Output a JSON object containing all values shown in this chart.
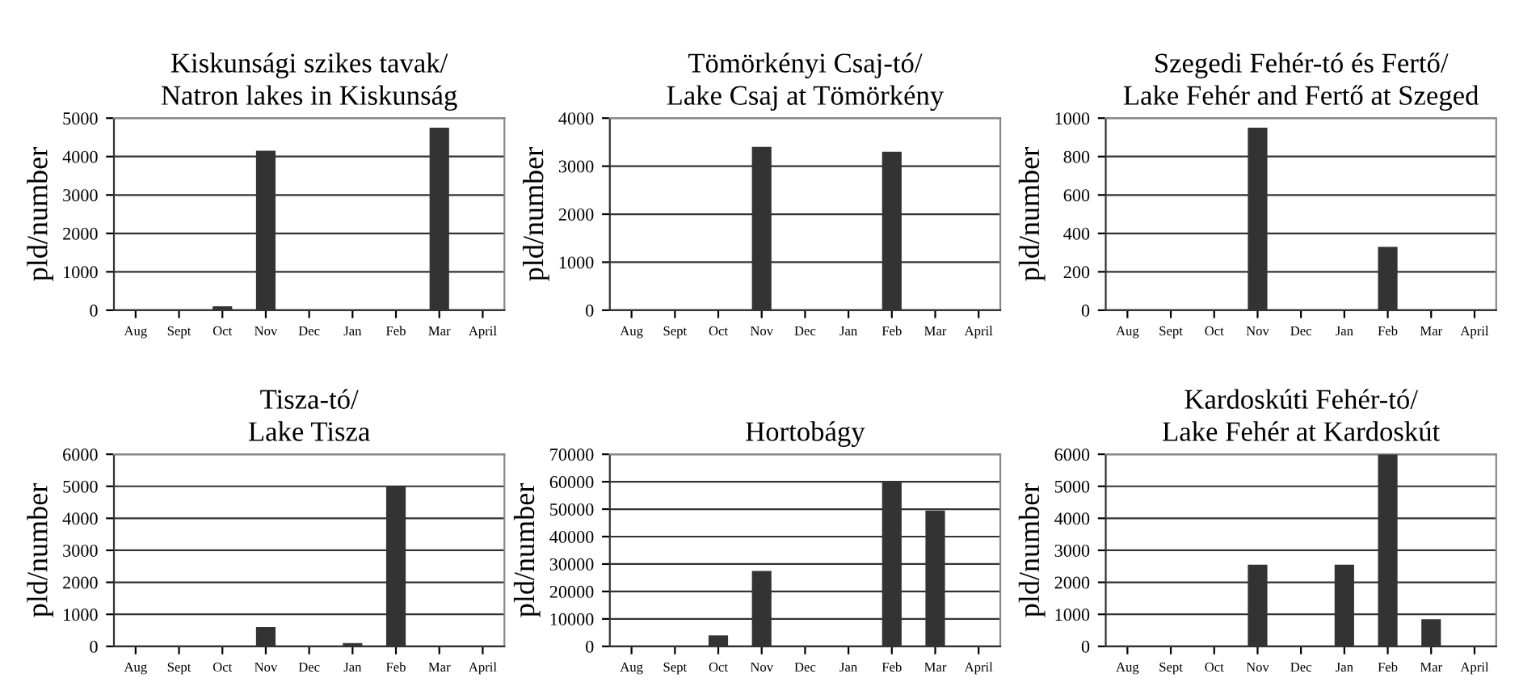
{
  "chart_data": [
    {
      "type": "bar",
      "title": "Kiskunsági szikes tavak/\nNatron lakes in Kiskunság",
      "ylabel": "pld/number",
      "categories": [
        "Aug",
        "Sept",
        "Oct",
        "Nov",
        "Dec",
        "Jan",
        "Feb",
        "Mar",
        "April"
      ],
      "values": [
        0,
        0,
        100,
        4150,
        0,
        0,
        0,
        4750,
        0
      ],
      "color": "#333333",
      "ylim": [
        0,
        5000
      ],
      "yticks": [
        0,
        1000,
        2000,
        3000,
        4000,
        5000
      ],
      "grid": "y"
    },
    {
      "type": "bar",
      "title": "Tömörkényi Csaj-tó/\nLake Csaj at Tömörkény",
      "ylabel": "pld/number",
      "categories": [
        "Aug",
        "Sept",
        "Oct",
        "Nov",
        "Dec",
        "Jan",
        "Feb",
        "Mar",
        "April"
      ],
      "values": [
        0,
        0,
        0,
        3400,
        0,
        0,
        3300,
        0,
        0
      ],
      "color": "#333333",
      "ylim": [
        0,
        4000
      ],
      "yticks": [
        0,
        1000,
        2000,
        3000,
        4000
      ],
      "grid": "y"
    },
    {
      "type": "bar",
      "title": "Szegedi Fehér-tó és Fertő/\nLake Fehér and Fertő at Szeged",
      "ylabel": "pld/number",
      "categories": [
        "Aug",
        "Sept",
        "Oct",
        "Nov",
        "Dec",
        "Jan",
        "Feb",
        "Mar",
        "April"
      ],
      "values": [
        0,
        0,
        0,
        950,
        0,
        0,
        330,
        0,
        0
      ],
      "color": "#333333",
      "ylim": [
        0,
        1000
      ],
      "yticks": [
        0,
        200,
        400,
        600,
        800,
        1000
      ],
      "grid": "y"
    },
    {
      "type": "bar",
      "title": "Tisza-tó/\nLake Tisza",
      "ylabel": "pld/number",
      "categories": [
        "Aug",
        "Sept",
        "Oct",
        "Nov",
        "Dec",
        "Jan",
        "Feb",
        "Mar",
        "April"
      ],
      "values": [
        0,
        0,
        0,
        600,
        0,
        100,
        5000,
        0,
        0
      ],
      "color": "#333333",
      "ylim": [
        0,
        6000
      ],
      "yticks": [
        0,
        1000,
        2000,
        3000,
        4000,
        5000,
        6000
      ],
      "grid": "y"
    },
    {
      "type": "bar",
      "title": "Hortobágy",
      "ylabel": "pld/number",
      "categories": [
        "Aug",
        "Sept",
        "Oct",
        "Nov",
        "Dec",
        "Jan",
        "Feb",
        "Mar",
        "April"
      ],
      "values": [
        0,
        0,
        4000,
        27500,
        0,
        0,
        60000,
        49500,
        0
      ],
      "color": "#333333",
      "ylim": [
        0,
        70000
      ],
      "yticks": [
        0,
        10000,
        20000,
        30000,
        40000,
        50000,
        60000,
        70000
      ],
      "grid": "y"
    },
    {
      "type": "bar",
      "title": "Kardoskúti Fehér-tó/\nLake Fehér at Kardoskút",
      "ylabel": "pld/number",
      "categories": [
        "Aug",
        "Sept",
        "Oct",
        "Nov",
        "Dec",
        "Jan",
        "Feb",
        "Mar",
        "April"
      ],
      "values": [
        0,
        0,
        0,
        2550,
        0,
        2550,
        6000,
        850,
        0
      ],
      "color": "#333333",
      "ylim": [
        0,
        6000
      ],
      "yticks": [
        0,
        1000,
        2000,
        3000,
        4000,
        5000,
        6000
      ],
      "grid": "y"
    }
  ]
}
